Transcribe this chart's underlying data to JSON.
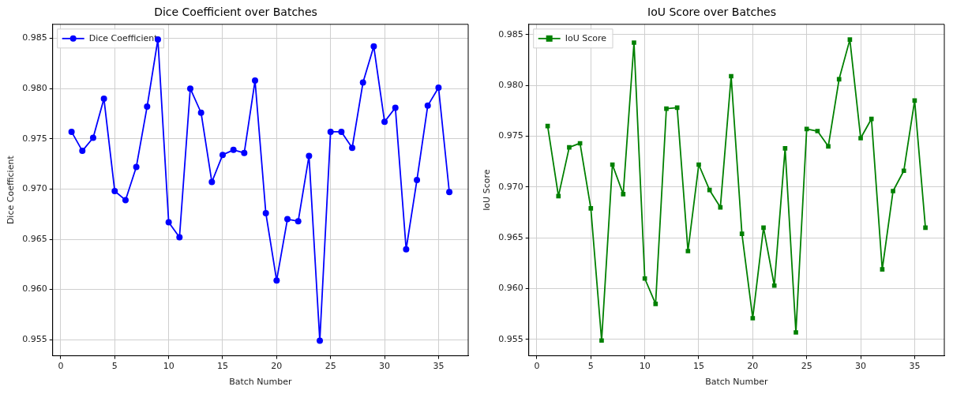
{
  "chart_data": [
    {
      "type": "line",
      "title": "Dice Coefficient over Batches",
      "xlabel": "Batch Number",
      "ylabel": "Dice Coefficient",
      "x": [
        1,
        2,
        3,
        4,
        5,
        6,
        7,
        8,
        9,
        10,
        11,
        12,
        13,
        14,
        15,
        16,
        17,
        18,
        19,
        20,
        21,
        22,
        23,
        24,
        25,
        26,
        27,
        28,
        29,
        30,
        31,
        32,
        33,
        34,
        35,
        36
      ],
      "series": [
        {
          "name": "Dice Coefficient",
          "color": "#0000ff",
          "values": [
            0.9757,
            0.9738,
            0.9751,
            0.979,
            0.9698,
            0.9689,
            0.9722,
            0.9782,
            0.9849,
            0.9667,
            0.9652,
            0.98,
            0.9776,
            0.9707,
            0.9734,
            0.9739,
            0.9736,
            0.9808,
            0.9676,
            0.9609,
            0.967,
            0.9668,
            0.9733,
            0.9549,
            0.9757,
            0.9757,
            0.9741,
            0.9806,
            0.9842,
            0.9767,
            0.9781,
            0.964,
            0.9709,
            0.9783,
            0.9801,
            0.9697
          ]
        }
      ],
      "xlim": [
        -0.75,
        37.75
      ],
      "xticks": [
        0,
        5,
        10,
        15,
        20,
        25,
        30,
        35
      ],
      "ylim": [
        0.9534,
        0.9864
      ],
      "yticks": [
        0.955,
        {
          "value": 0.96,
          "label": "0.960"
        },
        0.965,
        {
          "value": 0.97,
          "label": "0.970"
        },
        0.975,
        {
          "value": 0.98,
          "label": "0.980"
        },
        0.985
      ],
      "grid": true,
      "legend": "top left",
      "marker": "circle",
      "line_style": "solid"
    },
    {
      "type": "line",
      "title": "IoU Score over Batches",
      "xlabel": "Batch Number",
      "ylabel": "IoU Score",
      "x": [
        1,
        2,
        3,
        4,
        5,
        6,
        7,
        8,
        9,
        10,
        11,
        12,
        13,
        14,
        15,
        16,
        17,
        18,
        19,
        20,
        21,
        22,
        23,
        24,
        25,
        26,
        27,
        28,
        29,
        30,
        31,
        32,
        33,
        34,
        35,
        36
      ],
      "series": [
        {
          "name": "IoU Score",
          "color": "#008000",
          "values": [
            0.976,
            0.9691,
            0.9739,
            0.9743,
            0.9679,
            0.9549,
            0.9722,
            0.9693,
            0.9842,
            0.961,
            0.9585,
            0.9777,
            0.9778,
            0.9637,
            0.9722,
            0.9697,
            0.968,
            0.9809,
            0.9654,
            0.9571,
            0.966,
            0.9603,
            0.9738,
            0.9557,
            0.9757,
            0.9755,
            0.974,
            0.9806,
            0.9845,
            0.9748,
            0.9767,
            0.9619,
            0.9696,
            0.9716,
            0.9785,
            0.966
          ]
        }
      ],
      "xlim": [
        -0.75,
        37.75
      ],
      "xticks": [
        0,
        5,
        10,
        15,
        20,
        25,
        30,
        35
      ],
      "ylim": [
        0.9534,
        0.986
      ],
      "yticks": [
        0.955,
        {
          "value": 0.96,
          "label": "0.960"
        },
        0.965,
        {
          "value": 0.97,
          "label": "0.970"
        },
        0.975,
        {
          "value": 0.98,
          "label": "0.980"
        },
        0.985
      ],
      "grid": true,
      "legend": "top left",
      "marker": "square",
      "line_style": "solid"
    }
  ]
}
